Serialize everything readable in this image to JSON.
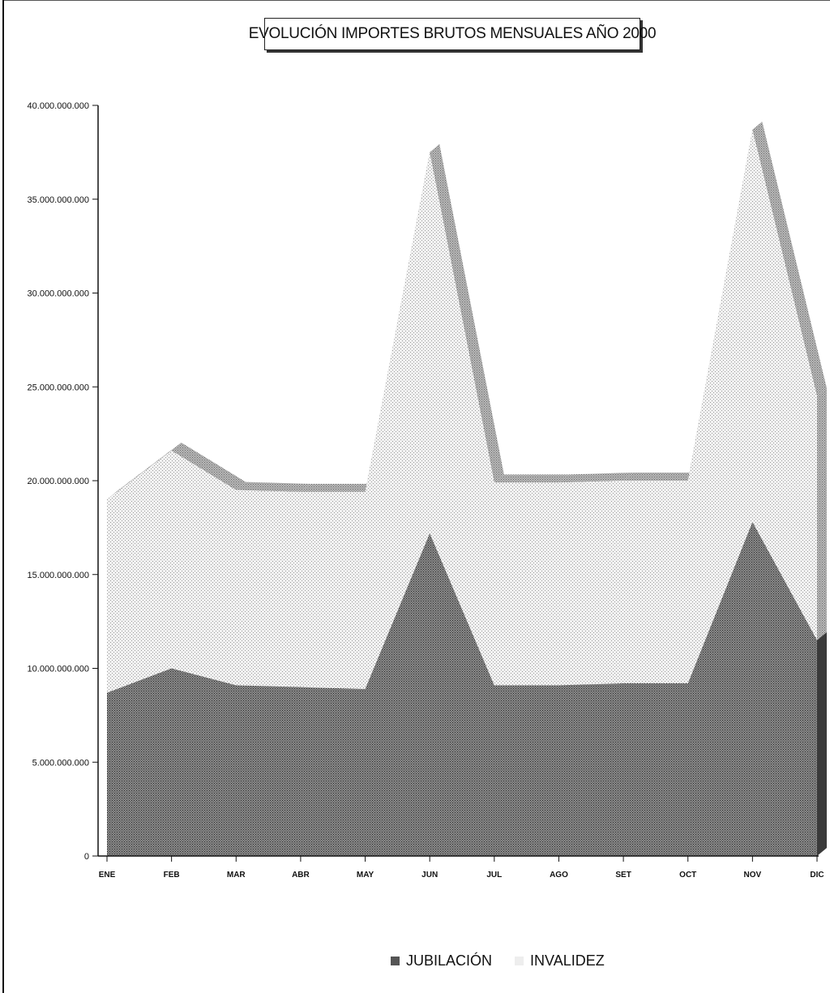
{
  "chart_data": {
    "type": "area",
    "title": "EVOLUCIÓN IMPORTES BRUTOS MENSUALES AÑO 2000",
    "categories": [
      "ENE",
      "FEB",
      "MAR",
      "ABR",
      "MAY",
      "JUN",
      "JUL",
      "AGO",
      "SET",
      "OCT",
      "NOV",
      "DIC"
    ],
    "stacked": true,
    "ylim": [
      0,
      40000000000
    ],
    "y_ticks": [
      "0",
      "5.000.000.000",
      "10.000.000.000",
      "15.000.000.000",
      "20.000.000.000",
      "25.000.000.000",
      "30.000.000.000",
      "35.000.000.000",
      "40.000.000.000"
    ],
    "y_tick_values": [
      0,
      5000000000,
      10000000000,
      15000000000,
      20000000000,
      25000000000,
      30000000000,
      35000000000,
      40000000000
    ],
    "series": [
      {
        "name": "JUBILACIÓN",
        "color": "#6e6e6e",
        "values": [
          8700000000,
          10000000000,
          9100000000,
          9000000000,
          8900000000,
          17200000000,
          9100000000,
          9100000000,
          9200000000,
          9200000000,
          17800000000,
          11500000000
        ]
      },
      {
        "name": "INVALIDEZ",
        "color": "#d6d6d6",
        "values": [
          10300000000,
          11600000000,
          10400000000,
          10400000000,
          10500000000,
          20300000000,
          10800000000,
          10800000000,
          10800000000,
          10800000000,
          20900000000,
          13000000000
        ]
      }
    ],
    "grid": false,
    "legend_position": "bottom"
  }
}
